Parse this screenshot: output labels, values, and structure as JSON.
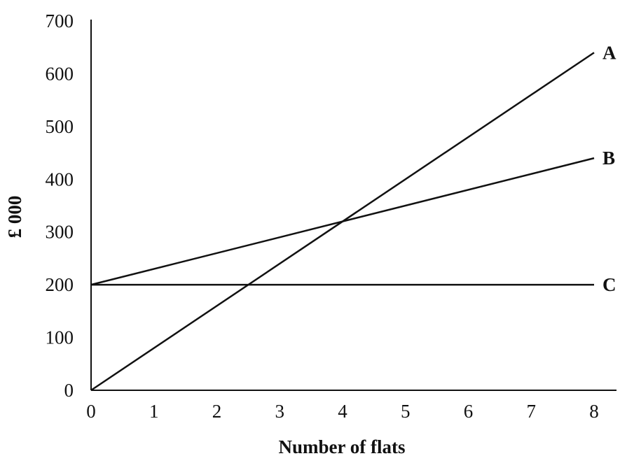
{
  "chart_data": {
    "type": "line",
    "title": "",
    "xlabel": "Number of flats",
    "ylabel": "£ 000",
    "xlim": [
      0,
      8
    ],
    "ylim": [
      0,
      700
    ],
    "x_ticks": [
      "0",
      "1",
      "2",
      "3",
      "4",
      "5",
      "6",
      "7",
      "8"
    ],
    "y_ticks": [
      "0",
      "100",
      "200",
      "300",
      "400",
      "500",
      "600",
      "700"
    ],
    "grid": false,
    "series": [
      {
        "name": "A",
        "x": [
          0,
          8
        ],
        "values": [
          0,
          640
        ]
      },
      {
        "name": "B",
        "x": [
          0,
          8
        ],
        "values": [
          200,
          440
        ]
      },
      {
        "name": "C",
        "x": [
          0,
          8
        ],
        "values": [
          200,
          200
        ]
      }
    ]
  }
}
